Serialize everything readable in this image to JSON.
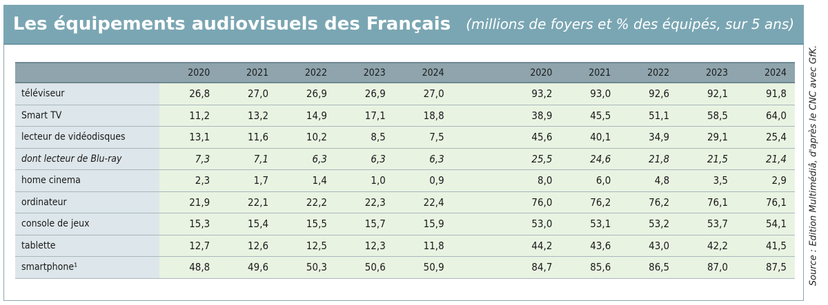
{
  "title": "Les équipements audiovisuels des Français",
  "subtitle": "(millions de foyers et % des équipés, sur 5 ans)",
  "source": "Source : Edition Multimédiâ, d'après  le CNC avec GfK.",
  "chart_data": {
    "type": "table",
    "years": [
      "2020",
      "2021",
      "2022",
      "2023",
      "2024"
    ],
    "rows": [
      {
        "label": "téléviseur",
        "italic": false,
        "millions": [
          "26,8",
          "27,0",
          "26,9",
          "26,9",
          "27,0"
        ],
        "pct": [
          "93,2",
          "93,0",
          "92,6",
          "92,1",
          "91,8"
        ]
      },
      {
        "label": "Smart TV",
        "italic": false,
        "millions": [
          "11,2",
          "13,2",
          "14,9",
          "17,1",
          "18,8"
        ],
        "pct": [
          "38,9",
          "45,5",
          "51,1",
          "58,5",
          "64,0"
        ]
      },
      {
        "label": "lecteur de vidéodisques",
        "italic": false,
        "millions": [
          "13,1",
          "11,6",
          "10,2",
          "8,5",
          "7,5"
        ],
        "pct": [
          "45,6",
          "40,1",
          "34,9",
          "29,1",
          "25,4"
        ]
      },
      {
        "label": "dont lecteur de Blu-ray",
        "italic": true,
        "millions": [
          "7,3",
          "7,1",
          "6,3",
          "6,3",
          "6,3"
        ],
        "pct": [
          "25,5",
          "24,6",
          "21,8",
          "21,5",
          "21,4"
        ]
      },
      {
        "label": "home cinema",
        "italic": false,
        "millions": [
          "2,3",
          "1,7",
          "1,4",
          "1,0",
          "0,9"
        ],
        "pct": [
          "8,0",
          "6,0",
          "4,8",
          "3,5",
          "2,9"
        ]
      },
      {
        "label": "ordinateur",
        "italic": false,
        "millions": [
          "21,9",
          "22,1",
          "22,2",
          "22,3",
          "22,4"
        ],
        "pct": [
          "76,0",
          "76,2",
          "76,2",
          "76,1",
          "76,1"
        ]
      },
      {
        "label": "console de jeux",
        "italic": false,
        "millions": [
          "15,3",
          "15,4",
          "15,5",
          "15,7",
          "15,9"
        ],
        "pct": [
          "53,0",
          "53,1",
          "53,2",
          "53,7",
          "54,1"
        ]
      },
      {
        "label": "tablette",
        "italic": false,
        "millions": [
          "12,7",
          "12,6",
          "12,5",
          "12,3",
          "11,8"
        ],
        "pct": [
          "44,2",
          "43,6",
          "43,0",
          "42,2",
          "41,5"
        ]
      },
      {
        "label": "smartphone¹",
        "italic": false,
        "millions": [
          "48,8",
          "49,6",
          "50,3",
          "50,6",
          "50,9"
        ],
        "pct": [
          "84,7",
          "85,6",
          "86,5",
          "87,0",
          "87,5"
        ]
      }
    ]
  },
  "colors": {
    "title_band": "#7aa6b3",
    "header_band": "#8fa4ac",
    "label_cell": "#dde6ea",
    "value_cell": "#e9f3e2"
  }
}
